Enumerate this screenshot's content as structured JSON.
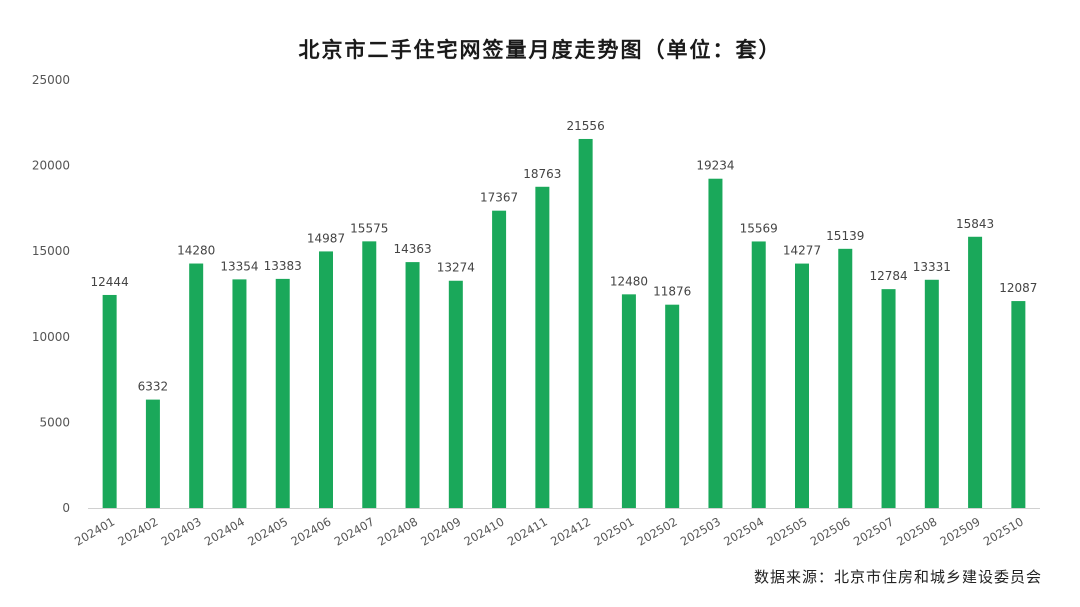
{
  "chart_data": {
    "type": "bar",
    "title": "北京市二手住宅网签量月度走势图（单位：套）",
    "source": "数据来源：北京市住房和城乡建设委员会",
    "xlabel": "",
    "ylabel": "",
    "ylim": [
      0,
      25000
    ],
    "yticks": [
      0,
      5000,
      10000,
      15000,
      20000,
      25000
    ],
    "grid": false,
    "legend": "none",
    "bar_color": "#1aa85a",
    "categories": [
      "202401",
      "202402",
      "202403",
      "202404",
      "202405",
      "202406",
      "202407",
      "202408",
      "202409",
      "202410",
      "202411",
      "202412",
      "202501",
      "202502",
      "202503",
      "202504",
      "202505",
      "202506",
      "202507",
      "202508",
      "202509",
      "202510"
    ],
    "values": [
      12444,
      6332,
      14280,
      13354,
      13383,
      14987,
      15575,
      14363,
      13274,
      17367,
      18763,
      21556,
      12480,
      11876,
      19234,
      15569,
      14277,
      15139,
      12784,
      13331,
      15843,
      12087
    ]
  }
}
